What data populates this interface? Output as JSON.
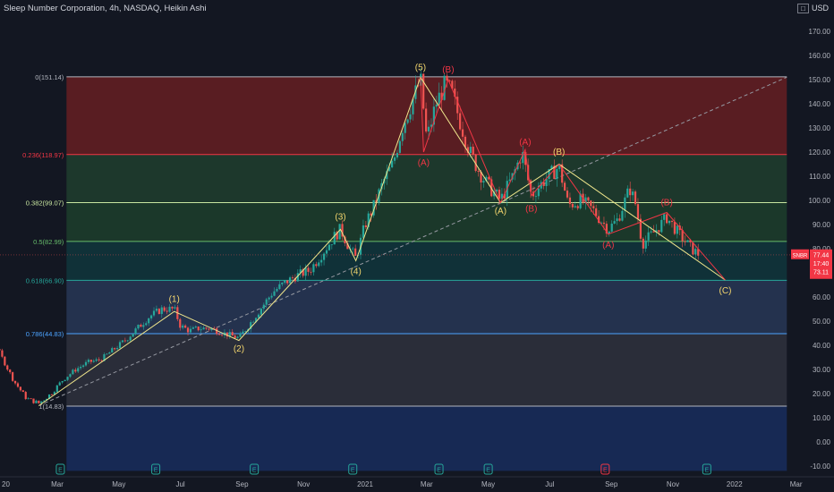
{
  "header": {
    "title": "Sleep Number Corporation, 4h, NASDAQ, Heikin Ashi",
    "currency": "USD"
  },
  "chart_data": {
    "type": "candlestick",
    "y_ticks": [
      -10,
      0,
      10,
      20,
      30,
      40,
      50,
      60,
      70,
      80,
      90,
      100,
      110,
      120,
      130,
      140,
      150,
      160,
      170
    ],
    "y_tick_labels": [
      "-10.00",
      "0.00",
      "10.00",
      "20.00",
      "30.00",
      "40.00",
      "50.00",
      "60.00",
      "70.00",
      "80.00",
      "90.00",
      "100.00",
      "110.00",
      "120.00",
      "130.00",
      "140.00",
      "150.00",
      "160.00",
      "170.00"
    ],
    "ylim": [
      -12,
      177
    ],
    "x_ticks": [
      {
        "label": "20",
        "t": -2
      },
      {
        "label": "Mar",
        "t": 2
      },
      {
        "label": "May",
        "t": 4
      },
      {
        "label": "Jul",
        "t": 6
      },
      {
        "label": "Sep",
        "t": 8
      },
      {
        "label": "Nov",
        "t": 10
      },
      {
        "label": "2021",
        "t": 12
      },
      {
        "label": "Mar",
        "t": 14
      },
      {
        "label": "May",
        "t": 16
      },
      {
        "label": "Jul",
        "t": 18
      },
      {
        "label": "Sep",
        "t": 20
      },
      {
        "label": "Nov",
        "t": 22
      },
      {
        "label": "2022",
        "t": 24
      },
      {
        "label": "Mar",
        "t": 26
      }
    ],
    "fib_levels": [
      {
        "label": "0(151.14)",
        "value": 151.14,
        "line": "#b2b5be",
        "fill": "#5d1d23"
      },
      {
        "label": "0.236(118.97)",
        "value": 118.97,
        "line": "#f23645",
        "fill": "#1e3a2d"
      },
      {
        "label": "0.382(99.07)",
        "value": 99.07,
        "line": "#c8e6a0",
        "fill": "#1b3a2b"
      },
      {
        "label": "0.5(82.99)",
        "value": 82.99,
        "line": "#66bb6a",
        "fill": "#10333a"
      },
      {
        "label": "0.618(66.90)",
        "value": 66.9,
        "line": "#26a69a",
        "fill": "#253451"
      },
      {
        "label": "0.786(44.83)",
        "value": 44.83,
        "line": "#4ca3ff",
        "fill": "#2b2e3b"
      },
      {
        "label": "1(14.83)",
        "value": 14.83,
        "line": "#b2b5be",
        "fill": "#172a57"
      }
    ],
    "fib_fill_bottom": -12,
    "waves_yellow": [
      {
        "label": "(1)",
        "t": 5.8,
        "v": 55,
        "pos": "above"
      },
      {
        "label": "(2)",
        "t": 7.9,
        "v": 43,
        "pos": "below"
      },
      {
        "label": "(3)",
        "t": 11.2,
        "v": 89,
        "pos": "above"
      },
      {
        "label": "(4)",
        "t": 11.7,
        "v": 75,
        "pos": "below"
      },
      {
        "label": "(5)",
        "t": 13.8,
        "v": 151,
        "pos": "above"
      },
      {
        "label": "(A)",
        "t": 16.4,
        "v": 100,
        "pos": "below"
      },
      {
        "label": "(B)",
        "t": 18.3,
        "v": 116,
        "pos": "above"
      },
      {
        "label": "(C)",
        "t": 23.7,
        "v": 67,
        "pos": "below"
      }
    ],
    "waves_red": [
      {
        "label": "(A)",
        "t": 13.9,
        "v": 120,
        "pos": "below"
      },
      {
        "label": "(B)",
        "t": 14.7,
        "v": 150,
        "pos": "above"
      },
      {
        "label": "(A)",
        "t": 17.2,
        "v": 120,
        "pos": "above"
      },
      {
        "label": "(B)",
        "t": 17.4,
        "v": 101,
        "pos": "below"
      },
      {
        "label": "(A)",
        "t": 19.9,
        "v": 86,
        "pos": "below"
      },
      {
        "label": "(B)",
        "t": 21.8,
        "v": 95,
        "pos": "above"
      }
    ],
    "price_path": [
      [
        -2,
        48
      ],
      [
        -1.6,
        52
      ],
      [
        -1.2,
        55
      ],
      [
        -0.8,
        58
      ],
      [
        -0.6,
        62
      ],
      [
        -0.4,
        55
      ],
      [
        -0.2,
        45
      ],
      [
        0.2,
        35
      ],
      [
        0.6,
        25
      ],
      [
        1.0,
        18
      ],
      [
        1.4,
        16
      ],
      [
        1.8,
        20
      ],
      [
        2.2,
        26
      ],
      [
        2.6,
        30
      ],
      [
        3.0,
        33
      ],
      [
        3.4,
        34
      ],
      [
        3.8,
        38
      ],
      [
        4.2,
        42
      ],
      [
        4.6,
        47
      ],
      [
        5.0,
        52
      ],
      [
        5.4,
        55
      ],
      [
        5.8,
        55
      ],
      [
        6.0,
        48
      ],
      [
        6.3,
        46
      ],
      [
        6.6,
        47
      ],
      [
        7.0,
        47
      ],
      [
        7.4,
        45
      ],
      [
        7.9,
        43
      ],
      [
        8.2,
        48
      ],
      [
        8.6,
        55
      ],
      [
        9.0,
        62
      ],
      [
        9.4,
        66
      ],
      [
        9.8,
        69
      ],
      [
        10.2,
        71
      ],
      [
        10.6,
        78
      ],
      [
        11.0,
        85
      ],
      [
        11.2,
        88
      ],
      [
        11.5,
        80
      ],
      [
        11.7,
        76
      ],
      [
        12.0,
        90
      ],
      [
        12.3,
        98
      ],
      [
        12.6,
        108
      ],
      [
        12.9,
        115
      ],
      [
        13.2,
        130
      ],
      [
        13.5,
        140
      ],
      [
        13.8,
        150
      ],
      [
        14.0,
        125
      ],
      [
        14.3,
        140
      ],
      [
        14.6,
        148
      ],
      [
        14.8,
        145
      ],
      [
        15.1,
        132
      ],
      [
        15.4,
        120
      ],
      [
        15.7,
        112
      ],
      [
        16.0,
        106
      ],
      [
        16.4,
        100
      ],
      [
        16.8,
        110
      ],
      [
        17.1,
        120
      ],
      [
        17.4,
        102
      ],
      [
        17.8,
        108
      ],
      [
        18.3,
        114
      ],
      [
        18.6,
        98
      ],
      [
        19.0,
        100
      ],
      [
        19.4,
        96
      ],
      [
        19.9,
        88
      ],
      [
        20.2,
        92
      ],
      [
        20.6,
        105
      ],
      [
        20.8,
        98
      ],
      [
        21.0,
        82
      ],
      [
        21.4,
        87
      ],
      [
        21.8,
        93
      ],
      [
        22.2,
        86
      ],
      [
        22.6,
        80
      ],
      [
        22.9,
        77
      ]
    ],
    "wave_path_yellow": [
      [
        1.4,
        15
      ],
      [
        5.8,
        54
      ],
      [
        7.9,
        42
      ],
      [
        11.2,
        88
      ],
      [
        11.7,
        75
      ],
      [
        13.8,
        151
      ],
      [
        16.4,
        99
      ],
      [
        18.3,
        115
      ],
      [
        23.7,
        67
      ]
    ],
    "wave_path_red_1": [
      [
        13.8,
        151
      ],
      [
        13.9,
        120
      ],
      [
        14.7,
        150
      ],
      [
        16.4,
        99
      ]
    ],
    "wave_path_red_2": [
      [
        16.4,
        99
      ],
      [
        17.2,
        121
      ],
      [
        17.4,
        102
      ],
      [
        18.3,
        115
      ]
    ],
    "wave_path_red_3": [
      [
        18.3,
        115
      ],
      [
        19.9,
        86
      ],
      [
        21.8,
        95
      ],
      [
        23.7,
        67
      ]
    ],
    "trendline": [
      [
        1.4,
        15
      ],
      [
        25.7,
        151
      ]
    ],
    "event_markers_t": [
      -0.6,
      2.1,
      5.2,
      8.4,
      11.6,
      14.4,
      16.0,
      19.8,
      23.1
    ],
    "event_markers_labels": [
      "E",
      "E",
      "E",
      "E",
      "E",
      "E",
      "E",
      "E",
      "E"
    ],
    "price_labels": [
      {
        "text": "SNBR",
        "v": 77.5,
        "color": "#f23645"
      },
      {
        "text": "77.44",
        "v": 77.5,
        "color": "#f23645"
      },
      {
        "text": "17:40",
        "v": 73.9,
        "color": "#f23645"
      },
      {
        "text": "73.11",
        "v": 70.3,
        "color": "#f23645"
      }
    ],
    "last_price": 77.44
  }
}
